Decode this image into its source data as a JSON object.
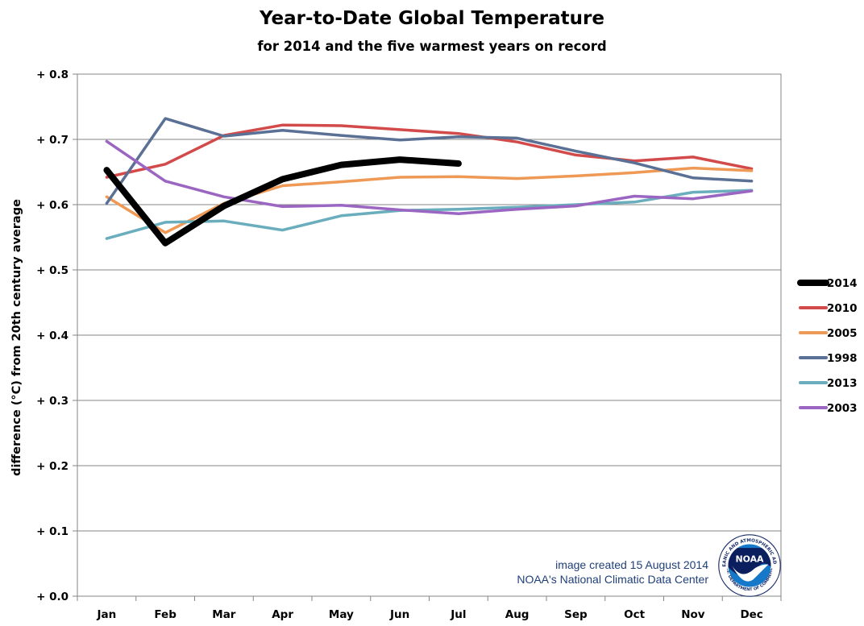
{
  "chart_data": {
    "type": "line",
    "title": "Year-to-Date Global Temperature",
    "subtitle": "for 2014 and the five warmest years on record",
    "xlabel": "",
    "ylabel": "difference (°C) from 20th century average",
    "categories": [
      "Jan",
      "Feb",
      "Mar",
      "Apr",
      "May",
      "Jun",
      "Jul",
      "Aug",
      "Sep",
      "Oct",
      "Nov",
      "Dec"
    ],
    "ylim": [
      0,
      0.8
    ],
    "yticks": [
      0.0,
      0.1,
      0.2,
      0.3,
      0.4,
      0.5,
      0.6,
      0.7,
      0.8
    ],
    "ytick_labels": [
      "+ 0.0",
      "+ 0.1",
      "+ 0.2",
      "+ 0.3",
      "+ 0.4",
      "+ 0.5",
      "+ 0.6",
      "+ 0.7",
      "+ 0.8"
    ],
    "grid": true,
    "legend_position": "right",
    "series": [
      {
        "name": "2014",
        "color": "#000000",
        "emphasis": true,
        "values": [
          0.653,
          0.541,
          0.598,
          0.639,
          0.661,
          0.669,
          0.663,
          null,
          null,
          null,
          null,
          null
        ]
      },
      {
        "name": "2010",
        "color": "#d24a4a",
        "values": [
          0.642,
          0.662,
          0.706,
          0.722,
          0.721,
          0.715,
          0.709,
          0.696,
          0.676,
          0.667,
          0.673,
          0.655
        ]
      },
      {
        "name": "2005",
        "color": "#ee9955",
        "values": [
          0.612,
          0.557,
          0.602,
          0.629,
          0.635,
          0.642,
          0.643,
          0.64,
          0.644,
          0.649,
          0.656,
          0.652
        ]
      },
      {
        "name": "1998",
        "color": "#5a7094",
        "values": [
          0.602,
          0.732,
          0.705,
          0.714,
          0.706,
          0.699,
          0.704,
          0.702,
          0.682,
          0.664,
          0.641,
          0.636
        ]
      },
      {
        "name": "2013",
        "color": "#6aadbd",
        "values": [
          0.548,
          0.573,
          0.575,
          0.561,
          0.583,
          0.591,
          0.593,
          0.596,
          0.6,
          0.604,
          0.619,
          0.622
        ]
      },
      {
        "name": "2003",
        "color": "#9b66c2",
        "values": [
          0.697,
          0.636,
          0.612,
          0.597,
          0.599,
          0.592,
          0.586,
          0.593,
          0.598,
          0.613,
          0.609,
          0.621
        ]
      }
    ]
  },
  "credits": {
    "line1": "image created 15 August 2014",
    "line2": "NOAA's National Climatic Data Center"
  },
  "logo": {
    "label": "NOAA",
    "seal_text": "NATIONAL OCEANIC AND ATMOSPHERIC ADMINISTRATION",
    "seal_text_bottom": "U.S. DEPARTMENT OF COMMERCE"
  }
}
